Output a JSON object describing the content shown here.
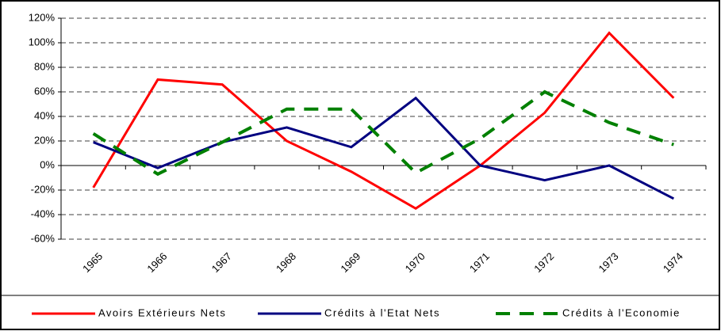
{
  "chart_data": {
    "type": "line",
    "categories": [
      "1965",
      "1966",
      "1967",
      "1968",
      "1969",
      "1970",
      "1971",
      "1972",
      "1973",
      "1974"
    ],
    "series": [
      {
        "name": "Avoirs Extérieurs Nets",
        "color": "#ff0000",
        "dashed": false,
        "values": [
          -18,
          70,
          66,
          20,
          -5,
          -35,
          0,
          43,
          108,
          55
        ]
      },
      {
        "name": "Crédits à l'Etat Nets",
        "color": "#000080",
        "dashed": false,
        "values": [
          19,
          -2,
          19,
          31,
          15,
          55,
          0,
          -12,
          0,
          -27
        ]
      },
      {
        "name": "Crédits à l'Economie",
        "color": "#008000",
        "dashed": true,
        "values": [
          26,
          -7,
          19,
          46,
          46,
          -6,
          22,
          60,
          35,
          17
        ]
      }
    ],
    "ylim": [
      -60,
      120
    ],
    "yticks": [
      {
        "value": -60,
        "label": "-60%"
      },
      {
        "value": -40,
        "label": "-40%"
      },
      {
        "value": -20,
        "label": "-20%"
      },
      {
        "value": 0,
        "label": "0%"
      },
      {
        "value": 20,
        "label": "20%"
      },
      {
        "value": 40,
        "label": "40%"
      },
      {
        "value": 60,
        "label": "60%"
      },
      {
        "value": 80,
        "label": "80%"
      },
      {
        "value": 100,
        "label": "100%"
      },
      {
        "value": 120,
        "label": "120%"
      }
    ],
    "grid": true,
    "legend": "bottom"
  }
}
